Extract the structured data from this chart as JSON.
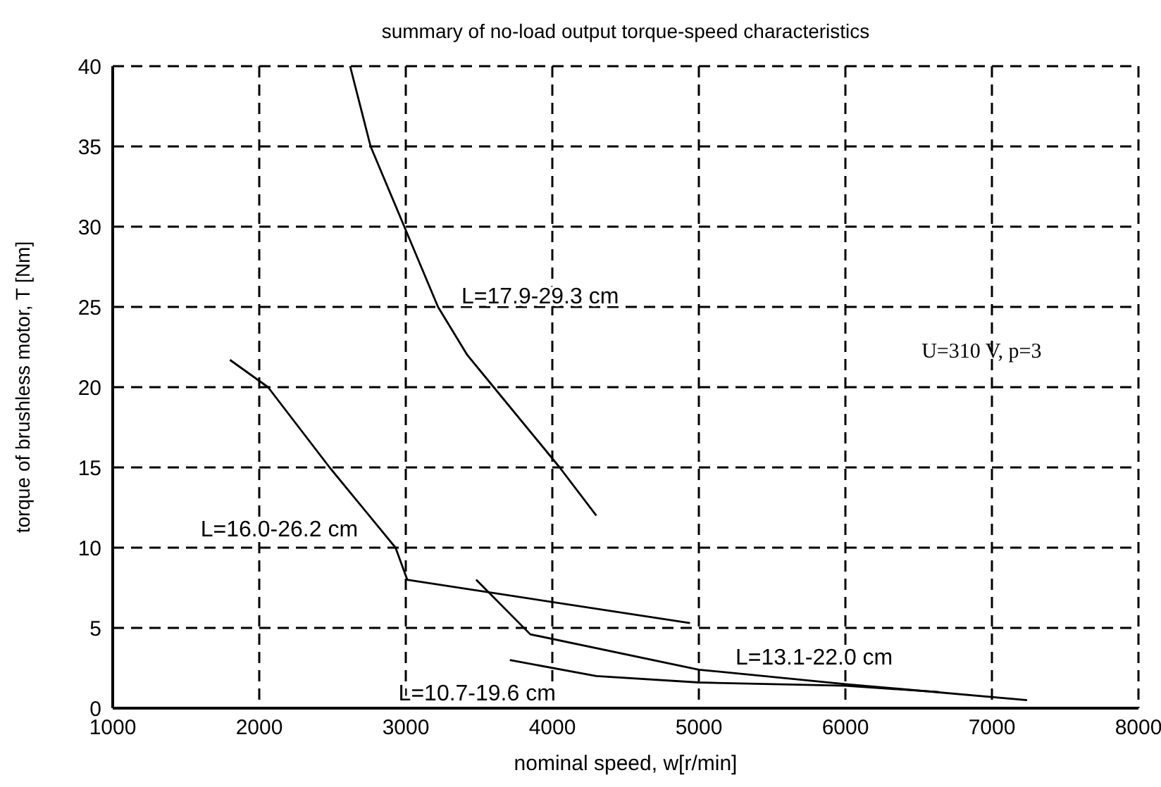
{
  "chart_data": {
    "type": "line",
    "title": "summary of  no-load output torque-speed characteristics",
    "xlabel": "nominal speed, w[r/min]",
    "ylabel": "torque of brushless motor, T [Nm]",
    "xlim": [
      1000,
      8000
    ],
    "xticks": [
      1000,
      2000,
      3000,
      4000,
      5000,
      6000,
      7000,
      8000
    ],
    "ylim": [
      0,
      40
    ],
    "yticks": [
      0,
      5,
      10,
      15,
      20,
      25,
      30,
      35,
      40
    ],
    "grid": true,
    "line_style": "solid",
    "marker": "none",
    "legend": false,
    "annotations": [
      "U=310 V,  p=3"
    ],
    "series": [
      {
        "name": "L=17.9-29.3 cm",
        "color": "#000000",
        "x": [
          2620,
          2760,
          2990,
          3220,
          3420,
          3600,
          4050,
          4300
        ],
        "values": [
          40,
          35,
          30,
          25,
          22,
          20,
          15,
          12
        ]
      },
      {
        "name": "L=16.0-26.2 cm",
        "color": "#000000",
        "x": [
          1800,
          2060,
          2480,
          2930,
          3010,
          4940
        ],
        "values": [
          21.7,
          20,
          15,
          10,
          8,
          5.3
        ]
      },
      {
        "name": "L=13.1-22.0 cm",
        "color": "#000000",
        "x": [
          3480,
          3850,
          5000,
          6000,
          7240
        ],
        "values": [
          8,
          4.6,
          2.4,
          1.5,
          0.5
        ]
      },
      {
        "name": "L=10.7-19.6 cm",
        "color": "#000000",
        "x": [
          3710,
          4300,
          5000,
          6000,
          6640
        ],
        "values": [
          3,
          2,
          1.6,
          1.4,
          1
        ]
      }
    ]
  }
}
